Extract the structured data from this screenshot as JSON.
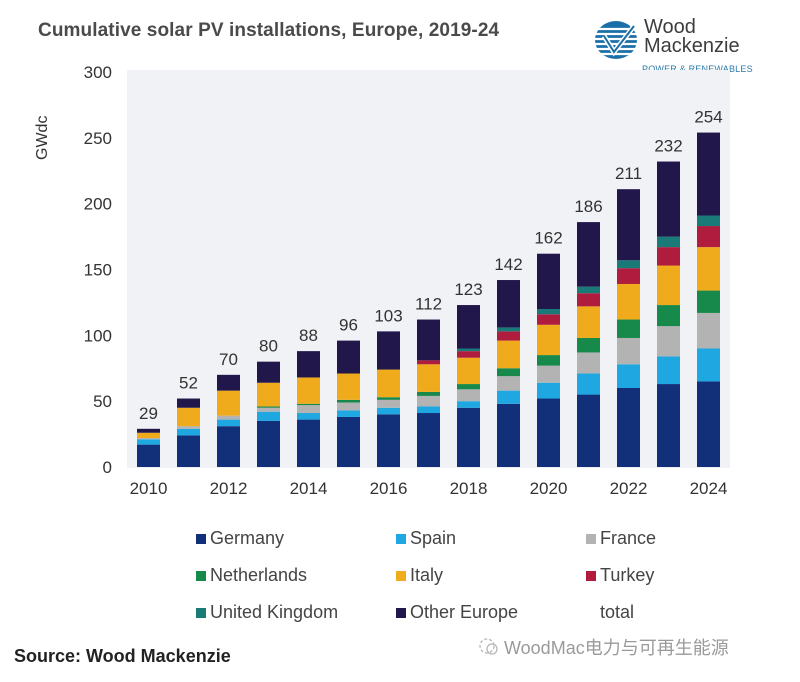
{
  "header": {
    "title": "Cumulative solar PV installations, Europe, 2019-24",
    "logo": {
      "line1": "Wood",
      "line2": "Mackenzie",
      "sub": "POWER & RENEWABLES",
      "icon": "wood-mackenzie-logo-icon"
    }
  },
  "footer": {
    "source": "Source: Wood Mackenzie",
    "watermark": "WoodMac电力与可再生能源",
    "watermark_icon": "wechat-icon"
  },
  "chart_data": {
    "type": "bar",
    "stacked": true,
    "title": "Cumulative solar PV installations, Europe, 2019-24",
    "xlabel": "",
    "ylabel": "GWdc",
    "ylim": [
      0,
      300
    ],
    "yticks": [
      0,
      50,
      100,
      150,
      200,
      250,
      300
    ],
    "categories": [
      "2010",
      "2011",
      "2012",
      "2013",
      "2014",
      "2015",
      "2016",
      "2017",
      "2018",
      "2019",
      "2020",
      "2021",
      "2022",
      "2023",
      "2024"
    ],
    "xtick_labels": [
      "2010",
      "",
      "2012",
      "",
      "2014",
      "",
      "2016",
      "",
      "2018",
      "",
      "2020",
      "",
      "2022",
      "",
      "2024"
    ],
    "grid": false,
    "legend_position": "bottom",
    "series": [
      {
        "name": "Germany",
        "color": "#12307a",
        "values": [
          17,
          24,
          31,
          35,
          36,
          38,
          40,
          41,
          45,
          48,
          52,
          55,
          60,
          63,
          65
        ]
      },
      {
        "name": "Spain",
        "color": "#1ea7e1",
        "values": [
          4,
          5,
          5,
          7,
          5,
          5,
          5,
          5,
          5,
          10,
          12,
          16,
          18,
          21,
          25
        ]
      },
      {
        "name": "France",
        "color": "#b3b3b3",
        "values": [
          1,
          2,
          3,
          3,
          6,
          6,
          6,
          8,
          9,
          11,
          13,
          16,
          20,
          23,
          27
        ]
      },
      {
        "name": "Netherlands",
        "color": "#17894a",
        "values": [
          0,
          0,
          0,
          1,
          1,
          2,
          2,
          3,
          4,
          6,
          8,
          11,
          14,
          16,
          17
        ]
      },
      {
        "name": "Italy",
        "color": "#f0ab1c",
        "values": [
          4,
          14,
          19,
          18,
          20,
          20,
          21,
          21,
          20,
          21,
          23,
          24,
          27,
          30,
          33
        ]
      },
      {
        "name": "Turkey",
        "color": "#b01c3e",
        "values": [
          0,
          0,
          0,
          0,
          0,
          0,
          0,
          3,
          5,
          7,
          8,
          10,
          12,
          14,
          16
        ]
      },
      {
        "name": "United Kingdom",
        "color": "#1a7a78",
        "values": [
          0,
          0,
          0,
          0,
          0,
          0,
          0,
          0,
          2,
          3,
          4,
          5,
          6,
          8,
          8
        ]
      },
      {
        "name": "Other Europe",
        "color": "#22174a",
        "values": [
          3,
          7,
          12,
          16,
          20,
          25,
          29,
          31,
          33,
          36,
          42,
          49,
          54,
          57,
          63
        ]
      }
    ],
    "totals": {
      "name": "total",
      "values": [
        29,
        52,
        70,
        80,
        88,
        96,
        103,
        112,
        123,
        142,
        162,
        186,
        211,
        232,
        254
      ]
    },
    "legend": [
      {
        "label": "Germany",
        "color": "#12307a"
      },
      {
        "label": "Spain",
        "color": "#1ea7e1"
      },
      {
        "label": "France",
        "color": "#b3b3b3"
      },
      {
        "label": "Netherlands",
        "color": "#17894a"
      },
      {
        "label": "Italy",
        "color": "#f0ab1c"
      },
      {
        "label": "Turkey",
        "color": "#b01c3e"
      },
      {
        "label": "United Kingdom",
        "color": "#1a7a78"
      },
      {
        "label": "Other Europe",
        "color": "#22174a"
      },
      {
        "label": "total",
        "color": null
      }
    ]
  }
}
